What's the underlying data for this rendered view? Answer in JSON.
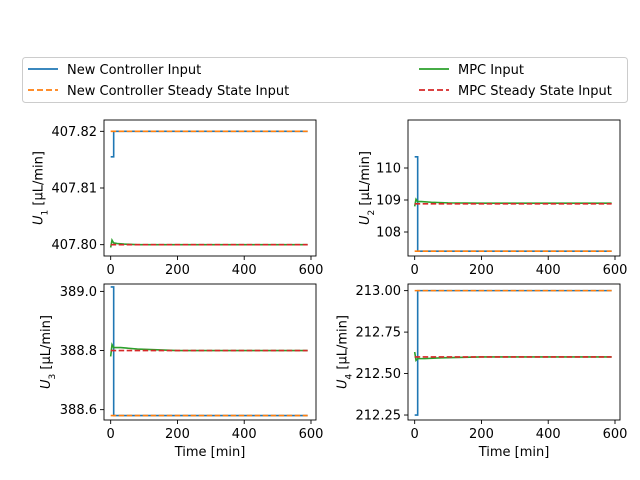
{
  "legend": {
    "items": [
      {
        "label": "New Controller Input",
        "color": "#1f77b4",
        "dash": false
      },
      {
        "label": "New Controller Steady State Input",
        "color": "#ff7f0e",
        "dash": true
      },
      {
        "label": "MPC Input",
        "color": "#2ca02c",
        "dash": false
      },
      {
        "label": "MPC Steady State Input",
        "color": "#d62728",
        "dash": true
      }
    ]
  },
  "chart_data": [
    {
      "type": "line",
      "ylabel_main": "U",
      "ylabel_sub": "1",
      "ylabel_unit": " [µL/min]",
      "xlabel": "",
      "xlim": [
        -20,
        615
      ],
      "ylim": [
        407.798,
        407.822
      ],
      "xticks": [
        0,
        200,
        400,
        600
      ],
      "xtick_labels": [
        "0",
        "200",
        "400",
        "600"
      ],
      "yticks": [
        407.8,
        407.81,
        407.82
      ],
      "ytick_labels": [
        "407.80",
        "407.81",
        "407.82"
      ],
      "series": [
        {
          "name": "New Controller Input",
          "color": "#1f77b4",
          "dash": false,
          "x": [
            0,
            9,
            9,
            590
          ],
          "y": [
            407.8155,
            407.8155,
            407.82,
            407.82
          ]
        },
        {
          "name": "New Controller Steady State Input",
          "color": "#ff7f0e",
          "dash": true,
          "x": [
            0,
            590
          ],
          "y": [
            407.82,
            407.82
          ]
        },
        {
          "name": "MPC Input",
          "color": "#2ca02c",
          "dash": false,
          "x": [
            0,
            4,
            9,
            20,
            40,
            80,
            150,
            590
          ],
          "y": [
            407.7995,
            407.8008,
            407.8003,
            407.8002,
            407.8001,
            407.8,
            407.8,
            407.8
          ]
        },
        {
          "name": "MPC Steady State Input",
          "color": "#d62728",
          "dash": true,
          "x": [
            0,
            590
          ],
          "y": [
            407.8,
            407.8
          ]
        }
      ]
    },
    {
      "type": "line",
      "ylabel_main": "U",
      "ylabel_sub": "2",
      "ylabel_unit": " [µL/min]",
      "xlabel": "",
      "xlim": [
        -20,
        615
      ],
      "ylim": [
        107.25,
        111.5
      ],
      "xticks": [
        0,
        200,
        400,
        600
      ],
      "xtick_labels": [
        "0",
        "200",
        "400",
        "600"
      ],
      "yticks": [
        108,
        109,
        110
      ],
      "ytick_labels": [
        "108",
        "109",
        "110"
      ],
      "series": [
        {
          "name": "New Controller Input",
          "color": "#1f77b4",
          "dash": false,
          "x": [
            0,
            9,
            9,
            590
          ],
          "y": [
            110.35,
            110.35,
            107.4,
            107.4
          ]
        },
        {
          "name": "New Controller Steady State Input",
          "color": "#ff7f0e",
          "dash": true,
          "x": [
            0,
            590
          ],
          "y": [
            107.4,
            107.4
          ]
        },
        {
          "name": "MPC Input",
          "color": "#2ca02c",
          "dash": false,
          "x": [
            0,
            4,
            9,
            20,
            50,
            100,
            200,
            590
          ],
          "y": [
            108.8,
            109.02,
            108.95,
            108.95,
            108.93,
            108.91,
            108.9,
            108.9
          ]
        },
        {
          "name": "MPC Steady State Input",
          "color": "#d62728",
          "dash": true,
          "x": [
            0,
            590
          ],
          "y": [
            108.88,
            108.88
          ]
        }
      ]
    },
    {
      "type": "line",
      "ylabel_main": "U",
      "ylabel_sub": "3",
      "ylabel_unit": " [µL/min]",
      "xlabel": "Time [min]",
      "xlim": [
        -20,
        615
      ],
      "ylim": [
        388.565,
        389.025
      ],
      "xticks": [
        0,
        200,
        400,
        600
      ],
      "xtick_labels": [
        "0",
        "200",
        "400",
        "600"
      ],
      "yticks": [
        388.6,
        388.8,
        389.0
      ],
      "ytick_labels": [
        "388.6",
        "388.8",
        "389.0"
      ],
      "series": [
        {
          "name": "New Controller Input",
          "color": "#1f77b4",
          "dash": false,
          "x": [
            0,
            9,
            9,
            590
          ],
          "y": [
            389.015,
            389.015,
            388.58,
            388.58
          ]
        },
        {
          "name": "New Controller Steady State Input",
          "color": "#ff7f0e",
          "dash": true,
          "x": [
            0,
            590
          ],
          "y": [
            388.58,
            388.58
          ]
        },
        {
          "name": "MPC Input",
          "color": "#2ca02c",
          "dash": false,
          "x": [
            0,
            4,
            9,
            30,
            80,
            200,
            590
          ],
          "y": [
            388.78,
            388.82,
            388.81,
            388.81,
            388.805,
            388.8,
            388.8
          ]
        },
        {
          "name": "MPC Steady State Input",
          "color": "#d62728",
          "dash": true,
          "x": [
            0,
            590
          ],
          "y": [
            388.8,
            388.8
          ]
        }
      ]
    },
    {
      "type": "line",
      "ylabel_main": "U",
      "ylabel_sub": "4",
      "ylabel_unit": " [µL/min]",
      "xlabel": "Time [min]",
      "xlim": [
        -20,
        615
      ],
      "ylim": [
        212.22,
        213.04
      ],
      "xticks": [
        0,
        200,
        400,
        600
      ],
      "xtick_labels": [
        "0",
        "200",
        "400",
        "600"
      ],
      "yticks": [
        212.25,
        212.5,
        212.75,
        213.0
      ],
      "ytick_labels": [
        "212.25",
        "212.50",
        "212.75",
        "213.00"
      ],
      "series": [
        {
          "name": "New Controller Input",
          "color": "#1f77b4",
          "dash": false,
          "x": [
            0,
            9,
            9,
            590
          ],
          "y": [
            212.25,
            212.25,
            213.0,
            213.0
          ]
        },
        {
          "name": "New Controller Steady State Input",
          "color": "#ff7f0e",
          "dash": true,
          "x": [
            0,
            590
          ],
          "y": [
            213.0,
            213.0
          ]
        },
        {
          "name": "MPC Input",
          "color": "#2ca02c",
          "dash": false,
          "x": [
            0,
            4,
            9,
            30,
            80,
            200,
            590
          ],
          "y": [
            212.63,
            212.58,
            212.59,
            212.59,
            212.595,
            212.6,
            212.6
          ]
        },
        {
          "name": "MPC Steady State Input",
          "color": "#d62728",
          "dash": true,
          "x": [
            0,
            590
          ],
          "y": [
            212.6,
            212.6
          ]
        }
      ]
    }
  ]
}
